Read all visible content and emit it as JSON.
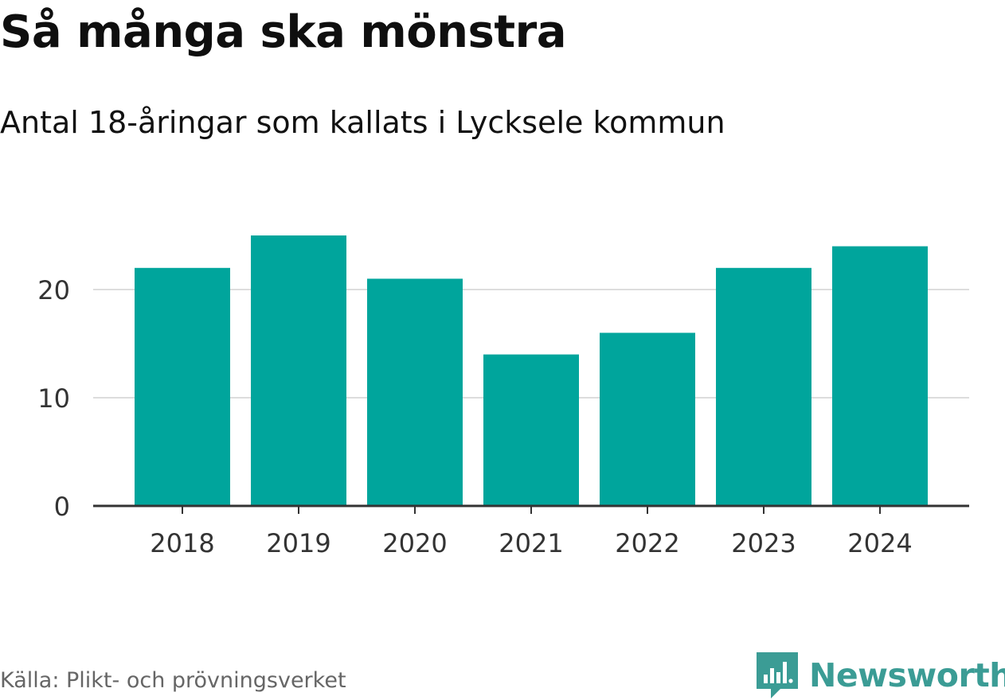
{
  "header": {
    "title": "Så många ska mönstra",
    "subtitle": "Antal 18-åringar som kallats i Lycksele kommun"
  },
  "footer": {
    "source": "Källa: Plikt- och prövningsverket",
    "brand": "Newsworthy",
    "brand_icon": "bar-chart-speech-bubble-icon"
  },
  "colors": {
    "bar": "#00a59c",
    "grid": "#dddddd",
    "axis": "#333333",
    "brand": "#3b9c95"
  },
  "chart_data": {
    "type": "bar",
    "title": "Så många ska mönstra",
    "subtitle": "Antal 18-åringar som kallats i Lycksele kommun",
    "categories": [
      "2018",
      "2019",
      "2020",
      "2021",
      "2022",
      "2023",
      "2024"
    ],
    "values": [
      22,
      25,
      21,
      14,
      16,
      22,
      24
    ],
    "yticks": [
      "0",
      "10",
      "20"
    ],
    "ylim": [
      0,
      25
    ],
    "grid": true,
    "legend": "none"
  }
}
